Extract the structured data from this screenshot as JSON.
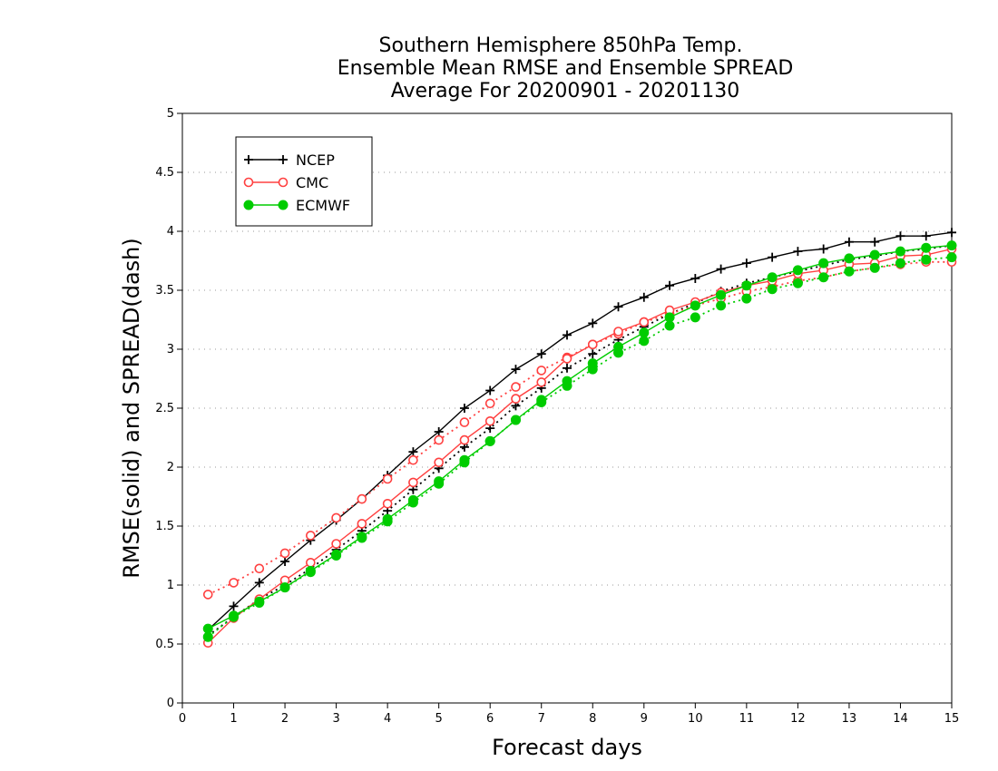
{
  "chart_data": {
    "type": "line",
    "title_lines": [
      "Southern Hemisphere 850hPa Temp.",
      "Ensemble Mean RMSE and Ensemble SPREAD",
      "Average For 20200901 - 20201130"
    ],
    "xlabel": "Forecast days",
    "ylabel": "RMSE(solid) and SPREAD(dash)",
    "xlim": [
      0,
      15
    ],
    "ylim": [
      0,
      5
    ],
    "xticks": [
      "0",
      "1",
      "2",
      "3",
      "4",
      "5",
      "6",
      "7",
      "8",
      "9",
      "10",
      "11",
      "12",
      "13",
      "14",
      "15"
    ],
    "yticks": [
      "0",
      "0.5",
      "1",
      "1.5",
      "2",
      "2.5",
      "3",
      "3.5",
      "4",
      "4.5",
      "5"
    ],
    "grid": "horizontal dotted",
    "legend_position": "top-left",
    "x": [
      0.5,
      1,
      1.5,
      2,
      2.5,
      3,
      3.5,
      4,
      4.5,
      5,
      5.5,
      6,
      6.5,
      7,
      7.5,
      8,
      8.5,
      9,
      9.5,
      10,
      10.5,
      11,
      11.5,
      12,
      12.5,
      13,
      13.5,
      14,
      14.5,
      15
    ],
    "series": [
      {
        "name": "NCEP",
        "color": "#000000",
        "marker": "plus",
        "rmse": [
          0.62,
          0.82,
          1.02,
          1.2,
          1.38,
          1.55,
          1.73,
          1.93,
          2.13,
          2.3,
          2.5,
          2.65,
          2.83,
          2.96,
          3.12,
          3.22,
          3.36,
          3.44,
          3.54,
          3.6,
          3.68,
          3.73,
          3.78,
          3.83,
          3.85,
          3.91,
          3.91,
          3.96,
          3.96,
          3.99
        ],
        "spread": [
          0.57,
          0.73,
          0.88,
          1.0,
          1.14,
          1.3,
          1.46,
          1.63,
          1.81,
          1.99,
          2.17,
          2.33,
          2.52,
          2.67,
          2.84,
          2.96,
          3.08,
          3.19,
          3.3,
          3.39,
          3.49,
          3.56,
          3.61,
          3.66,
          3.71,
          3.76,
          3.79,
          3.83,
          3.85,
          3.88
        ]
      },
      {
        "name": "CMC",
        "color": "#ff4040",
        "marker": "circle",
        "rmse": [
          0.51,
          0.72,
          0.88,
          1.04,
          1.19,
          1.35,
          1.52,
          1.69,
          1.87,
          2.04,
          2.23,
          2.39,
          2.58,
          2.72,
          2.92,
          3.04,
          3.15,
          3.23,
          3.33,
          3.4,
          3.48,
          3.54,
          3.58,
          3.64,
          3.67,
          3.72,
          3.73,
          3.79,
          3.8,
          3.85
        ],
        "spread": [
          0.92,
          1.02,
          1.14,
          1.27,
          1.42,
          1.57,
          1.73,
          1.9,
          2.06,
          2.23,
          2.38,
          2.54,
          2.68,
          2.82,
          2.93,
          3.04,
          3.13,
          3.23,
          3.3,
          3.37,
          3.43,
          3.49,
          3.53,
          3.58,
          3.61,
          3.66,
          3.69,
          3.72,
          3.74,
          3.74
        ]
      },
      {
        "name": "ECMWF",
        "color": "#00cc00",
        "marker": "filled-circle",
        "rmse": [
          0.63,
          0.74,
          0.86,
          0.98,
          1.12,
          1.26,
          1.41,
          1.56,
          1.72,
          1.88,
          2.06,
          2.22,
          2.4,
          2.57,
          2.73,
          2.88,
          3.02,
          3.14,
          3.27,
          3.37,
          3.46,
          3.54,
          3.61,
          3.67,
          3.73,
          3.77,
          3.8,
          3.83,
          3.86,
          3.88
        ],
        "spread": [
          0.56,
          0.73,
          0.85,
          0.98,
          1.11,
          1.25,
          1.4,
          1.54,
          1.7,
          1.86,
          2.04,
          2.22,
          2.4,
          2.55,
          2.69,
          2.83,
          2.97,
          3.07,
          3.2,
          3.27,
          3.37,
          3.43,
          3.51,
          3.56,
          3.61,
          3.66,
          3.69,
          3.73,
          3.76,
          3.78
        ]
      }
    ]
  }
}
